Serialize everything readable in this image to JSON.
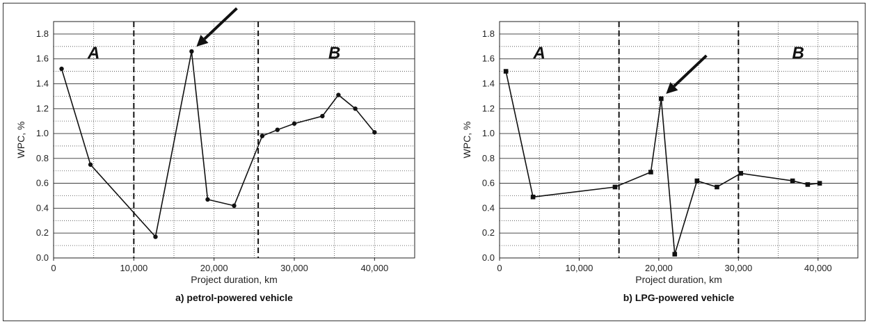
{
  "chart_data": [
    {
      "type": "line",
      "caption": "a) petrol-powered vehicle",
      "xlabel": "Project duration, km",
      "ylabel": "WPC, %",
      "xlim": [
        0,
        45000
      ],
      "ylim": [
        0,
        1.9
      ],
      "xticks": [
        0,
        10000,
        20000,
        30000,
        40000
      ],
      "xtick_labels": [
        "0",
        "10,000",
        "20,000",
        "30,000",
        "40,000"
      ],
      "yticks": [
        0.0,
        0.2,
        0.4,
        0.6,
        0.8,
        1.0,
        1.2,
        1.4,
        1.6,
        1.8
      ],
      "ytick_labels": [
        "0.0",
        "0.2",
        "0.4",
        "0.6",
        "0.8",
        "1.0",
        "1.2",
        "1.4",
        "1.6",
        "1.8"
      ],
      "grid": true,
      "marker": "circle",
      "x": [
        1000,
        4600,
        12700,
        17200,
        19200,
        22500,
        26000,
        27900,
        30000,
        33500,
        35500,
        37600,
        40000
      ],
      "y": [
        1.52,
        0.75,
        0.17,
        1.66,
        0.47,
        0.42,
        0.98,
        1.03,
        1.08,
        1.14,
        1.31,
        1.2,
        1.01
      ],
      "dividers": [
        10000,
        25500
      ],
      "zones": [
        {
          "label": "A",
          "x": 5000
        },
        {
          "label": "B",
          "x": 35000
        }
      ],
      "arrow_target": [
        17200,
        1.66
      ]
    },
    {
      "type": "line",
      "caption": "b) LPG-powered vehicle",
      "xlabel": "Project duration, km",
      "ylabel": "WPC, %",
      "xlim": [
        0,
        45000
      ],
      "ylim": [
        0,
        1.9
      ],
      "xticks": [
        0,
        10000,
        20000,
        30000,
        40000
      ],
      "xtick_labels": [
        "0",
        "10,000",
        "20,000",
        "30,000",
        "40,000"
      ],
      "yticks": [
        0.0,
        0.2,
        0.4,
        0.6,
        0.8,
        1.0,
        1.2,
        1.4,
        1.6,
        1.8
      ],
      "ytick_labels": [
        "0.0",
        "0.2",
        "0.4",
        "0.6",
        "0.8",
        "1.0",
        "1.2",
        "1.4",
        "1.6",
        "1.8"
      ],
      "grid": true,
      "marker": "square",
      "x": [
        800,
        4200,
        14500,
        19000,
        20300,
        22000,
        24800,
        27300,
        30300,
        36800,
        38700,
        40200
      ],
      "y": [
        1.5,
        0.49,
        0.57,
        0.69,
        1.28,
        0.03,
        0.62,
        0.57,
        0.68,
        0.62,
        0.59,
        0.6
      ],
      "dividers": [
        15000,
        30000
      ],
      "zones": [
        {
          "label": "A",
          "x": 5000
        },
        {
          "label": "B",
          "x": 37500
        }
      ],
      "arrow_target": [
        20300,
        1.28
      ]
    }
  ]
}
